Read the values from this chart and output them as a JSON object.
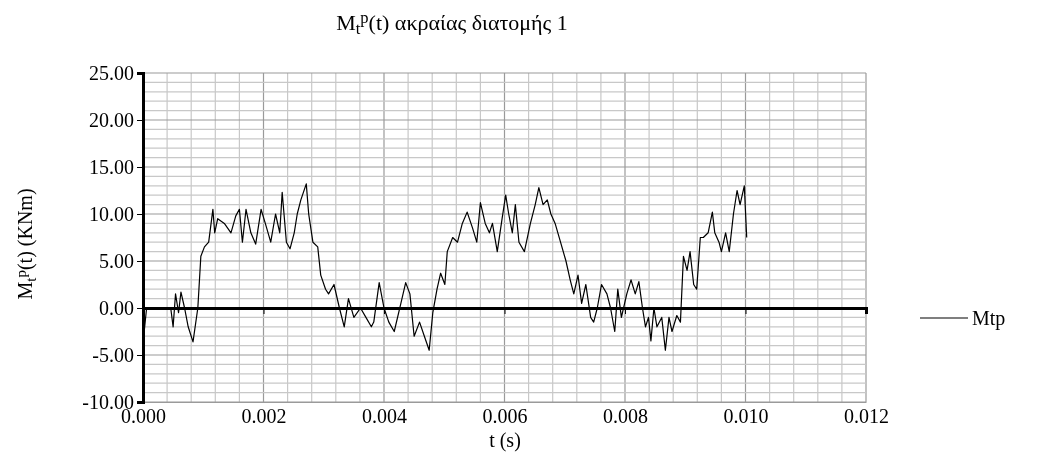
{
  "chart_data": {
    "type": "line",
    "title": "M$_{t}$$^{p}$(t) ακραίας διατομής 1",
    "xlabel": "t (s)",
    "ylabel": "M$_{t}$$^{p}$(t)  (KNm)",
    "xlim": [
      0,
      0.012
    ],
    "xticks": [
      {
        "value": 0,
        "label": "0.000"
      },
      {
        "value": 0.002,
        "label": "0.002"
      },
      {
        "value": 0.004,
        "label": "0.004"
      },
      {
        "value": 0.006,
        "label": "0.006"
      },
      {
        "value": 0.008,
        "label": "0.008"
      },
      {
        "value": 0.01,
        "label": "0.010"
      },
      {
        "value": 0.012,
        "label": "0.012"
      }
    ],
    "ylim": [
      -10,
      25
    ],
    "yticks": [
      {
        "value": -10,
        "label": "-10.00"
      },
      {
        "value": -5,
        "label": "-5.00"
      },
      {
        "value": 0,
        "label": "0.00"
      },
      {
        "value": 5,
        "label": "5.00"
      },
      {
        "value": 10,
        "label": "10.00"
      },
      {
        "value": 15,
        "label": "15.00"
      },
      {
        "value": 20,
        "label": "20.00"
      },
      {
        "value": 25,
        "label": "25.00"
      }
    ],
    "grid": true,
    "legend": "right",
    "marker": "none",
    "line_style": "solid",
    "series": [
      {
        "name": "Mtp",
        "color": "#000000",
        "x": [
          0,
          2e-05,
          6e-05,
          0.00046,
          0.0005,
          0.00054,
          0.00059,
          0.00063,
          0.00069,
          0.00075,
          0.00083,
          0.00091,
          0.00096,
          0.00102,
          0.00109,
          0.00116,
          0.00119,
          0.00124,
          0.00135,
          0.00146,
          0.00154,
          0.0016,
          0.00165,
          0.00171,
          0.00179,
          0.00187,
          0.00196,
          0.00203,
          0.00212,
          0.0022,
          0.00227,
          0.00231,
          0.00238,
          0.00244,
          0.00251,
          0.00256,
          0.00262,
          0.00271,
          0.00275,
          0.00282,
          0.0029,
          0.00295,
          0.00303,
          0.00308,
          0.00317,
          0.00326,
          0.00334,
          0.00341,
          0.0035,
          0.00361,
          0.0037,
          0.00379,
          0.00383,
          0.00392,
          0.004,
          0.00408,
          0.00417,
          0.00428,
          0.00436,
          0.00443,
          0.0045,
          0.00459,
          0.00467,
          0.00475,
          0.00481,
          0.00488,
          0.00494,
          0.00501,
          0.00505,
          0.00514,
          0.00522,
          0.0053,
          0.00538,
          0.00547,
          0.00554,
          0.0056,
          0.00568,
          0.00575,
          0.0058,
          0.00588,
          0.00596,
          0.00602,
          0.00607,
          0.00613,
          0.00618,
          0.00624,
          0.00633,
          0.00643,
          0.00651,
          0.00657,
          0.00664,
          0.00671,
          0.00677,
          0.00684,
          0.00693,
          0.00702,
          0.00709,
          0.00715,
          0.00722,
          0.00728,
          0.00735,
          0.00743,
          0.00748,
          0.00754,
          0.00761,
          0.0077,
          0.00776,
          0.00783,
          0.00788,
          0.00794,
          0.00803,
          0.0081,
          0.00817,
          0.00823,
          0.00829,
          0.00834,
          0.00839,
          0.00843,
          0.00848,
          0.00853,
          0.00861,
          0.00867,
          0.00873,
          0.00878,
          0.00886,
          0.00892,
          0.00897,
          0.00903,
          0.00908,
          0.00914,
          0.00919,
          0.00925,
          0.0093,
          0.00938,
          0.00945,
          0.00949,
          0.00956,
          0.0096,
          0.00967,
          0.00973,
          0.0098,
          0.00986,
          0.00991,
          0.00998,
          0.01002
        ],
        "values": [
          0,
          -2.5,
          0,
          0,
          -2,
          1.5,
          -0.5,
          1.7,
          0,
          -2,
          -3.6,
          0,
          5.5,
          6.5,
          7,
          10.5,
          8,
          9.5,
          9,
          8,
          9.8,
          10.5,
          7,
          10.5,
          8,
          6.8,
          10.5,
          9,
          7,
          10,
          8,
          12.3,
          7,
          6.3,
          8,
          10,
          11.5,
          13.2,
          10,
          7,
          6.5,
          3.5,
          2,
          1.5,
          2.5,
          0,
          -2,
          1,
          -1,
          0,
          -1,
          -2,
          -1.5,
          2.7,
          0,
          -1.5,
          -2.5,
          0.5,
          2.7,
          1.5,
          -3,
          -1.5,
          -3,
          -4.5,
          -0.5,
          2,
          3.7,
          2.5,
          6,
          7.5,
          7,
          9,
          10.2,
          8.5,
          7,
          11.2,
          9,
          8,
          9,
          6,
          9.5,
          12,
          10,
          8,
          11,
          7,
          6,
          9,
          11,
          12.8,
          11,
          11.5,
          10,
          9,
          7,
          5,
          3,
          1.5,
          3.5,
          0.5,
          2.5,
          -1,
          -1.5,
          0,
          2.5,
          1.5,
          0,
          -2.5,
          2,
          -1,
          1.5,
          3,
          1.5,
          2.8,
          0,
          -2,
          -1,
          -3.5,
          0,
          -2,
          -1,
          -4.5,
          -1,
          -2.5,
          -0.8,
          -1.5,
          5.5,
          4,
          6,
          2.5,
          2,
          7.5,
          7.5,
          8,
          10.2,
          8,
          7,
          6,
          8,
          6,
          10,
          12.5,
          11,
          13,
          7.5
        ]
      }
    ]
  }
}
